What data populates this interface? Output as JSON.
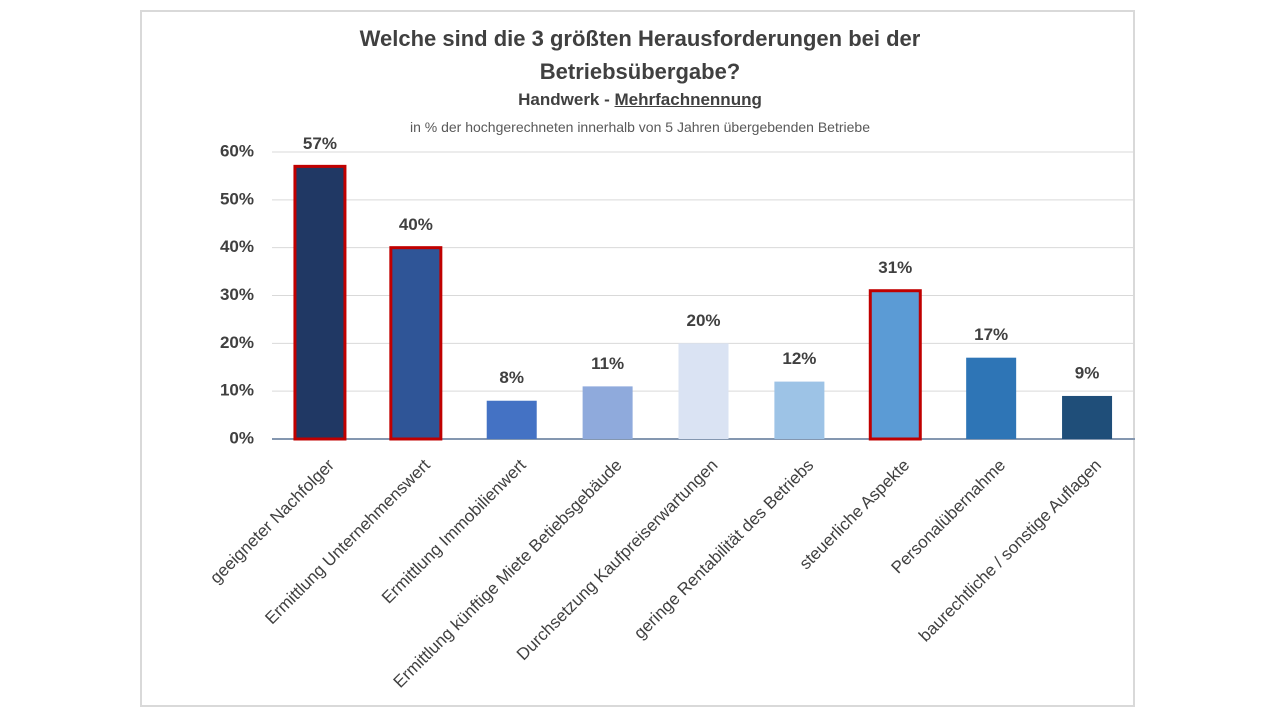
{
  "chart_data": {
    "type": "bar",
    "title": "Welche sind die 3 größten Herausforderungen bei der Betriebsübergabe?",
    "subtitle": "Handwerk -",
    "subtitle_underlined": "Mehrfachnennung",
    "note": "in % der hochgerechneten innerhalb von 5 Jahren übergebenden Betriebe",
    "categories": [
      "geeigneter Nachfolger",
      "Ermittlung Unternehmenswert",
      "Ermittlung Immobilienwert",
      "Ermittlung künftige Miete Betiebsgebäude",
      "Durchsetzung Kaufpreiserwartungen",
      "geringe Rentabilität des Betriebs",
      "steuerliche Aspekte",
      "Personalübernahme",
      "baurechtliche / sonstige Auflagen"
    ],
    "values": [
      57,
      40,
      8,
      11,
      20,
      12,
      31,
      17,
      9
    ],
    "value_labels": [
      "57%",
      "40%",
      "8%",
      "11%",
      "20%",
      "12%",
      "31%",
      "17%",
      "9%"
    ],
    "colors": [
      "#203864",
      "#2f5597",
      "#4472c4",
      "#8faadc",
      "#dae3f3",
      "#9dc3e6",
      "#5b9bd5",
      "#2e75b6",
      "#1f4e79"
    ],
    "highlighted": [
      true,
      true,
      false,
      false,
      false,
      false,
      true,
      false,
      false
    ],
    "highlight_color": "#c00000",
    "ylim": [
      0,
      60
    ],
    "yticks": [
      {
        "value": 0,
        "label": "0%"
      },
      {
        "value": 10,
        "label": "10%"
      },
      {
        "value": 20,
        "label": "20%"
      },
      {
        "value": 30,
        "label": "30%"
      },
      {
        "value": 40,
        "label": "40%"
      },
      {
        "value": 50,
        "label": "50%"
      },
      {
        "value": 60,
        "label": "60%"
      }
    ],
    "grid": true
  }
}
